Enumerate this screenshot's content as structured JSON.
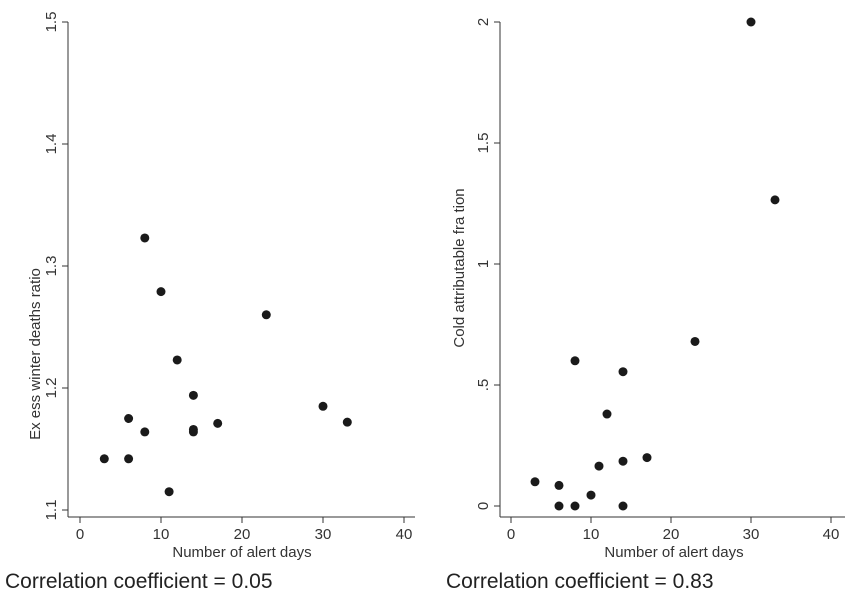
{
  "chart_data": [
    {
      "type": "scatter",
      "title": "",
      "xlabel": "Number of alert days",
      "ylabel": "Ex ess winter deaths ratio",
      "xlim": [
        0,
        40
      ],
      "ylim": [
        1.1,
        1.5
      ],
      "xticks": [
        "0",
        "10",
        "20",
        "30",
        "40"
      ],
      "yticks": [
        "1.1",
        "1.2",
        "1.3",
        "1.4",
        "1.5"
      ],
      "x": [
        3,
        6,
        6,
        8,
        8,
        10,
        11,
        12,
        14,
        14,
        14,
        17,
        23,
        30,
        33
      ],
      "y": [
        1.142,
        1.142,
        1.175,
        1.164,
        1.323,
        1.279,
        1.115,
        1.223,
        1.194,
        1.166,
        1.164,
        1.171,
        1.26,
        1.185,
        1.172
      ],
      "grid": false,
      "caption": "Correlation coefficient = 0.05"
    },
    {
      "type": "scatter",
      "title": "",
      "xlabel": "Number of alert days",
      "ylabel": "Cold attributable fra  tion",
      "xlim": [
        0,
        40
      ],
      "ylim": [
        0,
        2
      ],
      "xticks": [
        "0",
        "10",
        "20",
        "30",
        "40"
      ],
      "yticks": [
        "0",
        ".5",
        "1",
        "1.5",
        "2"
      ],
      "x": [
        3,
        6,
        6,
        8,
        8,
        10,
        11,
        12,
        14,
        14,
        14,
        17,
        23,
        30,
        33
      ],
      "y": [
        0.1,
        0.085,
        0.0,
        0.0,
        0.6,
        0.045,
        0.165,
        0.38,
        0.555,
        0.185,
        0.0,
        0.2,
        0.68,
        2.0,
        1.265
      ],
      "grid": false,
      "caption": "Correlation coefficient = 0.83"
    }
  ],
  "colors": {
    "marker": "#1a1a1a",
    "axis": "#333333",
    "text": "#333333"
  }
}
